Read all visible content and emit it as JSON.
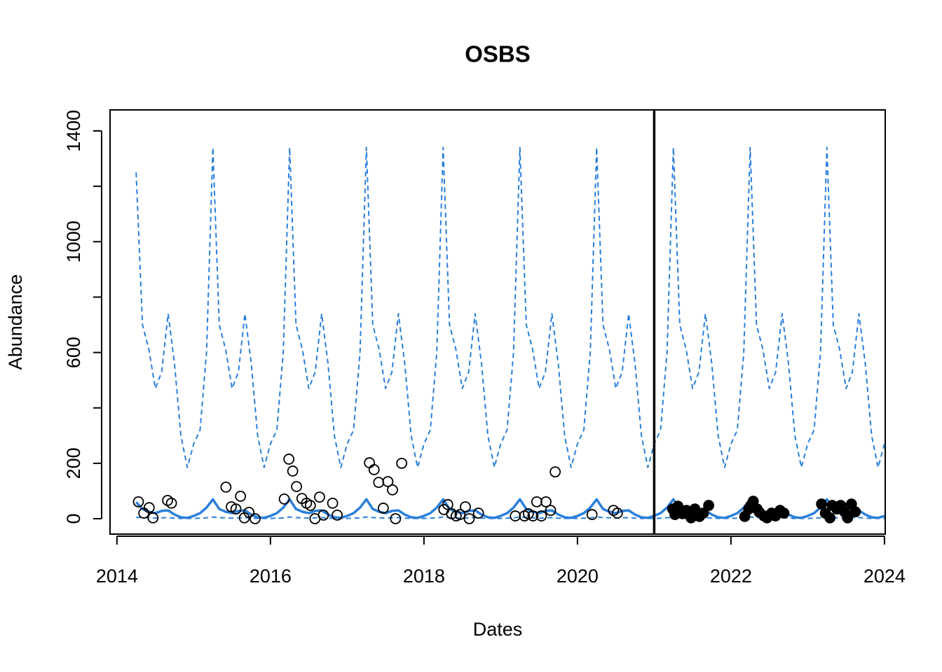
{
  "chart_data": {
    "type": "line",
    "title": "OSBS",
    "xlabel": "Dates",
    "ylabel": "Abundance",
    "xlim": [
      2013.91,
      2024.01
    ],
    "ylim": [
      -55.6,
      1475.8
    ],
    "xticks": [
      2014,
      2016,
      2018,
      2020,
      2022,
      2024
    ],
    "yticks": [
      0,
      200,
      {
        "value": 400,
        "label": null
      },
      600,
      {
        "value": 800,
        "label": null
      },
      1000,
      {
        "value": 1200,
        "label": null
      },
      1400
    ],
    "vline": 2021,
    "x": [
      2014.25,
      2014.333,
      2014.417,
      2014.5,
      2014.583,
      2014.667,
      2014.75,
      2014.833,
      2014.917,
      2015,
      2015.083,
      2015.167,
      2015.25,
      2015.333,
      2015.417,
      2015.5,
      2015.583,
      2015.667,
      2015.75,
      2015.833,
      2015.917,
      2016,
      2016.083,
      2016.167,
      2016.25,
      2016.333,
      2016.417,
      2016.5,
      2016.583,
      2016.667,
      2016.75,
      2016.833,
      2016.917,
      2017,
      2017.083,
      2017.167,
      2017.25,
      2017.333,
      2017.417,
      2017.5,
      2017.583,
      2017.667,
      2017.75,
      2017.833,
      2017.917,
      2018,
      2018.083,
      2018.167,
      2018.25,
      2018.333,
      2018.417,
      2018.5,
      2018.583,
      2018.667,
      2018.75,
      2018.833,
      2018.917,
      2019,
      2019.083,
      2019.167,
      2019.25,
      2019.333,
      2019.417,
      2019.5,
      2019.583,
      2019.667,
      2019.75,
      2019.833,
      2019.917,
      2020,
      2020.083,
      2020.167,
      2020.25,
      2020.333,
      2020.417,
      2020.5,
      2020.583,
      2020.667,
      2020.75,
      2020.833,
      2020.917,
      2021,
      2021.083,
      2021.167,
      2021.25,
      2021.333,
      2021.417,
      2021.5,
      2021.583,
      2021.667,
      2021.75,
      2021.833,
      2021.917,
      2022,
      2022.083,
      2022.167,
      2022.25,
      2022.333,
      2022.417,
      2022.5,
      2022.583,
      2022.667,
      2022.75,
      2022.833,
      2022.917,
      2023,
      2023.083,
      2023.167,
      2023.25,
      2023.333,
      2023.417,
      2023.5,
      2023.583,
      2023.667,
      2023.75,
      2023.833,
      2023.917,
      2024
    ],
    "series": [
      {
        "color": "#2a7fdb",
        "style": "dashed",
        "values": [
          1250,
          700,
          610,
          470,
          530,
          740,
          560,
          300,
          185,
          270,
          320,
          600,
          1340,
          700,
          610,
          470,
          530,
          740,
          560,
          300,
          185,
          270,
          320,
          600,
          1340,
          700,
          610,
          470,
          530,
          740,
          560,
          300,
          185,
          270,
          320,
          600,
          1340,
          700,
          610,
          470,
          530,
          740,
          560,
          300,
          185,
          270,
          320,
          600,
          1340,
          700,
          610,
          470,
          530,
          740,
          560,
          300,
          185,
          270,
          320,
          600,
          1340,
          700,
          610,
          470,
          530,
          740,
          560,
          300,
          185,
          270,
          320,
          600,
          1340,
          700,
          610,
          470,
          530,
          740,
          560,
          300,
          185,
          270,
          320,
          600,
          1340,
          700,
          610,
          470,
          530,
          740,
          560,
          300,
          185,
          270,
          320,
          600,
          1340,
          700,
          610,
          470,
          530,
          740,
          560,
          300,
          185,
          270,
          320,
          600,
          1340,
          700,
          610,
          470,
          530,
          740,
          560,
          300,
          185,
          270
        ]
      },
      {
        "color": "#2a7fdb",
        "style": "solid",
        "values": [
          60,
          35,
          25,
          20,
          28,
          30,
          15,
          5,
          3,
          10,
          20,
          40,
          70,
          35,
          25,
          20,
          28,
          30,
          15,
          5,
          3,
          10,
          20,
          40,
          70,
          35,
          25,
          20,
          28,
          30,
          15,
          5,
          3,
          10,
          20,
          40,
          70,
          35,
          25,
          20,
          28,
          30,
          15,
          5,
          3,
          10,
          20,
          40,
          70,
          35,
          25,
          20,
          28,
          30,
          15,
          5,
          3,
          10,
          20,
          40,
          70,
          35,
          25,
          20,
          28,
          30,
          15,
          5,
          3,
          10,
          20,
          40,
          70,
          35,
          25,
          20,
          28,
          30,
          15,
          5,
          3,
          10,
          20,
          40,
          70,
          35,
          25,
          20,
          28,
          30,
          15,
          5,
          3,
          10,
          20,
          40,
          70,
          35,
          25,
          20,
          28,
          30,
          15,
          5,
          3,
          10,
          20,
          40,
          70,
          35,
          25,
          20,
          28,
          30,
          15,
          5,
          3,
          10
        ]
      },
      {
        "color": "#2a7fdb",
        "style": "dashed",
        "values": [
          5,
          4,
          3,
          2,
          3,
          4,
          2,
          1,
          1,
          1,
          2,
          3,
          6,
          4,
          3,
          2,
          3,
          4,
          2,
          1,
          1,
          1,
          2,
          3,
          6,
          4,
          3,
          2,
          3,
          4,
          2,
          1,
          1,
          1,
          2,
          3,
          6,
          4,
          3,
          2,
          3,
          4,
          2,
          1,
          1,
          1,
          2,
          3,
          6,
          4,
          3,
          2,
          3,
          4,
          2,
          1,
          1,
          1,
          2,
          3,
          6,
          4,
          3,
          2,
          3,
          4,
          2,
          1,
          1,
          1,
          2,
          3,
          6,
          4,
          3,
          2,
          3,
          4,
          2,
          1,
          1,
          1,
          2,
          3,
          6,
          4,
          3,
          2,
          3,
          4,
          2,
          1,
          1,
          1,
          2,
          3,
          6,
          4,
          3,
          2,
          3,
          4,
          2,
          1,
          1,
          1,
          2,
          3,
          6,
          4,
          3,
          2,
          3,
          4,
          2,
          1,
          1,
          1
        ]
      }
    ],
    "points": [
      {
        "marker": "open",
        "color": "#000000",
        "x": [
          2014.28,
          2014.35,
          2014.42,
          2014.47,
          2014.66,
          2014.71,
          2015.42,
          2015.49,
          2015.55,
          2015.61,
          2015.66,
          2015.72,
          2015.8,
          2016.18,
          2016.24,
          2016.29,
          2016.34,
          2016.41,
          2016.47,
          2016.52,
          2016.58,
          2016.64,
          2016.69,
          2016.81,
          2016.87,
          2017.29,
          2017.35,
          2017.41,
          2017.47,
          2017.53,
          2017.59,
          2017.63,
          2017.71,
          2018.26,
          2018.31,
          2018.36,
          2018.42,
          2018.47,
          2018.54,
          2018.59,
          2018.71,
          2019.19,
          2019.31,
          2019.36,
          2019.42,
          2019.47,
          2019.53,
          2019.59,
          2019.65,
          2019.71,
          2020.19,
          2020.47,
          2020.52
        ],
        "values": [
          61,
          20,
          40,
          3,
          66,
          56,
          114,
          43,
          35,
          81,
          3,
          23,
          0,
          71,
          215,
          172,
          116,
          73,
          56,
          48,
          0,
          78,
          13,
          56,
          13,
          202,
          177,
          131,
          38,
          134,
          104,
          0,
          200,
          33,
          51,
          18,
          10,
          15,
          43,
          0,
          20,
          10,
          10,
          18,
          10,
          61,
          10,
          61,
          30,
          169,
          15,
          30,
          20
        ]
      },
      {
        "marker": "filled",
        "color": "#000000",
        "x": [
          2021.24,
          2021.27,
          2021.31,
          2021.37,
          2021.42,
          2021.48,
          2021.53,
          2021.59,
          2021.64,
          2021.71,
          2022.18,
          2022.23,
          2022.26,
          2022.29,
          2022.34,
          2022.37,
          2022.43,
          2022.47,
          2022.53,
          2022.58,
          2022.64,
          2022.69,
          2023.18,
          2023.23,
          2023.29,
          2023.32,
          2023.38,
          2023.43,
          2023.48,
          2023.52,
          2023.57,
          2023.62
        ],
        "values": [
          35,
          15,
          45,
          18,
          30,
          3,
          35,
          8,
          20,
          48,
          8,
          35,
          48,
          63,
          35,
          23,
          10,
          3,
          20,
          10,
          30,
          20,
          53,
          20,
          3,
          48,
          35,
          48,
          25,
          3,
          53,
          25
        ]
      }
    ]
  }
}
